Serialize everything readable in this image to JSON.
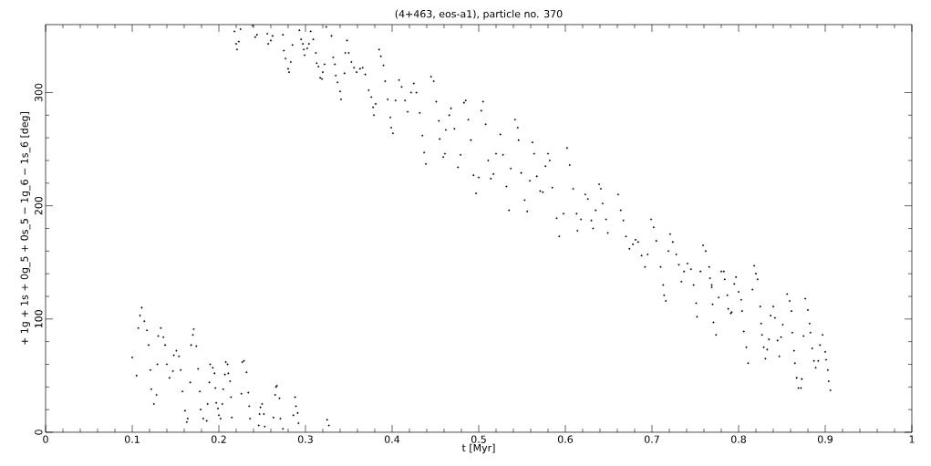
{
  "chart_data": {
    "type": "scatter",
    "title": "(4+463, eos-a1), particle no. 370",
    "xlabel": "t [Myr]",
    "ylabel": "+ 1g + 1s + 0g_5 + 0s_5 − 1g_6 − 1s_6 [deg]",
    "xlim": [
      0,
      1
    ],
    "ylim": [
      0,
      360
    ],
    "xticks": [
      0,
      0.1,
      0.2,
      0.3,
      0.4,
      0.5,
      0.6,
      0.7,
      0.8,
      0.9,
      1
    ],
    "yticks": [
      0,
      100,
      200,
      300
    ],
    "series": [
      {
        "color": "#000000",
        "x": [
          0.111,
          0.109,
          0.114,
          0.107,
          0.1,
          0.105,
          0.117,
          0.119,
          0.121,
          0.122,
          0.125,
          0.128,
          0.129,
          0.13,
          0.133,
          0.136,
          0.138,
          0.14,
          0.143,
          0.147,
          0.148,
          0.151,
          0.154,
          0.156,
          0.158,
          0.161,
          0.163,
          0.164,
          0.167,
          0.168,
          0.171,
          0.17,
          0.174,
          0.176,
          0.178,
          0.179,
          0.182,
          0.186,
          0.187,
          0.189,
          0.19,
          0.193,
          0.195,
          0.196,
          0.197,
          0.199,
          0.2,
          0.202,
          0.204,
          0.205,
          0.207,
          0.208,
          0.21,
          0.211,
          0.213,
          0.214,
          0.215,
          0.226,
          0.227,
          0.229,
          0.232,
          0.234,
          0.235,
          0.236,
          0.246,
          0.247,
          0.248,
          0.25,
          0.252,
          0.253,
          0.263,
          0.265,
          0.266,
          0.267,
          0.27,
          0.271,
          0.274,
          0.286,
          0.288,
          0.289,
          0.291,
          0.292,
          0.325,
          0.327,
          0.218,
          0.22,
          0.221,
          0.223,
          0.225,
          0.239,
          0.242,
          0.244,
          0.256,
          0.257,
          0.26,
          0.262,
          0.274,
          0.275,
          0.277,
          0.28,
          0.281,
          0.283,
          0.285,
          0.293,
          0.295,
          0.297,
          0.298,
          0.299,
          0.302,
          0.304,
          0.306,
          0.309,
          0.312,
          0.313,
          0.315,
          0.317,
          0.319,
          0.32,
          0.322,
          0.324,
          0.33,
          0.332,
          0.334,
          0.335,
          0.337,
          0.34,
          0.341,
          0.345,
          0.346,
          0.348,
          0.35,
          0.353,
          0.356,
          0.359,
          0.363,
          0.366,
          0.369,
          0.373,
          0.376,
          0.378,
          0.379,
          0.381,
          0.385,
          0.387,
          0.39,
          0.392,
          0.395,
          0.398,
          0.399,
          0.401,
          0.404,
          0.408,
          0.411,
          0.415,
          0.418,
          0.422,
          0.425,
          0.428,
          0.432,
          0.435,
          0.437,
          0.439,
          0.445,
          0.448,
          0.451,
          0.454,
          0.455,
          0.459,
          0.461,
          0.462,
          0.466,
          0.468,
          0.472,
          0.476,
          0.479,
          0.483,
          0.485,
          0.488,
          0.491,
          0.494,
          0.497,
          0.5,
          0.503,
          0.505,
          0.508,
          0.511,
          0.514,
          0.517,
          0.52,
          0.525,
          0.528,
          0.532,
          0.535,
          0.537,
          0.542,
          0.545,
          0.546,
          0.549,
          0.553,
          0.556,
          0.559,
          0.562,
          0.564,
          0.567,
          0.571,
          0.574,
          0.577,
          0.58,
          0.582,
          0.585,
          0.59,
          0.593,
          0.598,
          0.602,
          0.605,
          0.609,
          0.613,
          0.614,
          0.618,
          0.623,
          0.626,
          0.63,
          0.632,
          0.635,
          0.639,
          0.641,
          0.643,
          0.647,
          0.649,
          0.661,
          0.664,
          0.667,
          0.67,
          0.674,
          0.678,
          0.681,
          0.684,
          0.688,
          0.692,
          0.695,
          0.699,
          0.702,
          0.705,
          0.71,
          0.713,
          0.714,
          0.716,
          0.719,
          0.721,
          0.724,
          0.728,
          0.731,
          0.734,
          0.737,
          0.741,
          0.745,
          0.748,
          0.751,
          0.752,
          0.756,
          0.759,
          0.762,
          0.766,
          0.769,
          0.77,
          0.767,
          0.769,
          0.771,
          0.774,
          0.777,
          0.78,
          0.783,
          0.784,
          0.787,
          0.788,
          0.791,
          0.792,
          0.795,
          0.797,
          0.8,
          0.803,
          0.804,
          0.806,
          0.809,
          0.811,
          0.816,
          0.818,
          0.82,
          0.822,
          0.825,
          0.826,
          0.827,
          0.829,
          0.831,
          0.833,
          0.835,
          0.837,
          0.84,
          0.842,
          0.845,
          0.847,
          0.849,
          0.851,
          0.856,
          0.859,
          0.861,
          0.862,
          0.864,
          0.865,
          0.867,
          0.869,
          0.872,
          0.873,
          0.875,
          0.877,
          0.88,
          0.882,
          0.883,
          0.885,
          0.887,
          0.889,
          0.892,
          0.894,
          0.897,
          0.9,
          0.901,
          0.903,
          0.904,
          0.906
        ],
        "values": [
          110,
          103,
          98,
          92,
          66,
          50,
          90,
          77,
          55,
          38,
          25,
          33,
          60,
          85,
          92,
          84,
          77,
          60,
          48,
          54,
          68,
          72,
          67,
          55,
          36,
          19,
          9,
          12,
          44,
          77,
          91,
          86,
          76,
          56,
          36,
          20,
          12,
          10,
          25,
          44,
          60,
          57,
          52,
          39,
          26,
          21,
          15,
          12,
          25,
          38,
          51,
          62,
          60,
          52,
          45,
          31,
          13,
          34,
          62,
          63,
          53,
          35,
          23,
          12,
          6,
          16,
          22,
          25,
          16,
          5,
          13,
          33,
          40,
          41,
          30,
          12,
          3,
          15,
          31,
          23,
          17,
          8,
          11,
          6,
          354,
          343,
          338,
          345,
          356,
          359,
          349,
          351,
          352,
          343,
          346,
          350,
          351,
          337,
          330,
          321,
          318,
          327,
          342,
          355,
          347,
          343,
          338,
          333,
          339,
          343,
          354,
          347,
          335,
          326,
          323,
          313,
          312,
          318,
          325,
          358,
          350,
          331,
          325,
          315,
          309,
          301,
          294,
          317,
          335,
          346,
          335,
          327,
          322,
          318,
          321,
          322,
          316,
          302,
          296,
          287,
          280,
          290,
          338,
          332,
          324,
          310,
          294,
          278,
          269,
          264,
          293,
          311,
          305,
          293,
          283,
          300,
          308,
          300,
          282,
          262,
          247,
          237,
          314,
          310,
          292,
          275,
          259,
          243,
          246,
          267,
          280,
          286,
          268,
          234,
          245,
          291,
          293,
          276,
          258,
          227,
          211,
          225,
          284,
          292,
          272,
          240,
          224,
          228,
          246,
          263,
          245,
          217,
          196,
          233,
          276,
          269,
          258,
          229,
          205,
          195,
          222,
          256,
          246,
          226,
          213,
          212,
          235,
          246,
          240,
          216,
          189,
          173,
          193,
          251,
          236,
          215,
          193,
          178,
          188,
          210,
          206,
          187,
          180,
          196,
          219,
          215,
          202,
          188,
          176,
          210,
          196,
          187,
          173,
          162,
          166,
          170,
          168,
          156,
          146,
          157,
          188,
          181,
          169,
          146,
          130,
          121,
          116,
          160,
          175,
          168,
          157,
          148,
          133,
          142,
          149,
          144,
          130,
          114,
          102,
          142,
          165,
          160,
          146,
          130,
          113,
          136,
          128,
          97,
          86,
          119,
          142,
          142,
          135,
          121,
          109,
          105,
          106,
          131,
          137,
          124,
          117,
          107,
          89,
          75,
          61,
          126,
          147,
          140,
          135,
          111,
          96,
          86,
          75,
          65,
          73,
          82,
          103,
          111,
          101,
          81,
          67,
          84,
          95,
          122,
          116,
          107,
          88,
          72,
          61,
          48,
          39,
          39,
          47,
          85,
          118,
          108,
          96,
          88,
          74,
          63,
          57,
          63,
          77,
          86,
          71,
          64,
          55,
          45,
          37
        ]
      }
    ]
  }
}
